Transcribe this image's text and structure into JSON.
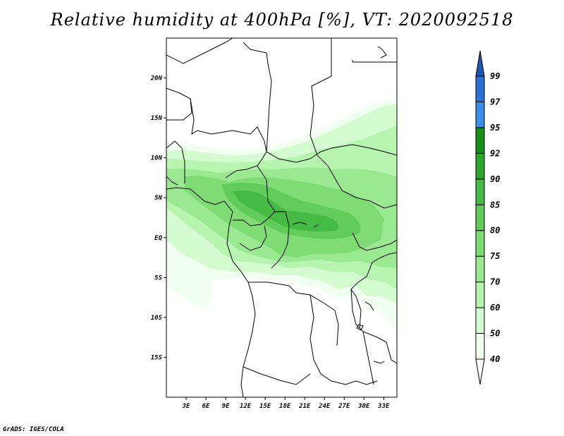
{
  "title": "Relative humidity at 400hPa [%], VT: 2020092518",
  "credit": "GrADS: IGES/COLA",
  "map": {
    "lon_range": [
      0,
      35
    ],
    "lat_range": [
      -20,
      25
    ],
    "lat_ticks": [
      {
        "value": 20,
        "label": "20N"
      },
      {
        "value": 15,
        "label": "15N"
      },
      {
        "value": 10,
        "label": "10N"
      },
      {
        "value": 5,
        "label": "5N"
      },
      {
        "value": 0,
        "label": "EQ"
      },
      {
        "value": -5,
        "label": "5S"
      },
      {
        "value": -10,
        "label": "10S"
      },
      {
        "value": -15,
        "label": "15S"
      }
    ],
    "lon_ticks": [
      {
        "value": 3,
        "label": "3E"
      },
      {
        "value": 6,
        "label": "6E"
      },
      {
        "value": 9,
        "label": "9E"
      },
      {
        "value": 12,
        "label": "12E"
      },
      {
        "value": 15,
        "label": "15E"
      },
      {
        "value": 18,
        "label": "18E"
      },
      {
        "value": 21,
        "label": "21E"
      },
      {
        "value": 24,
        "label": "24E"
      },
      {
        "value": 27,
        "label": "27E"
      },
      {
        "value": 30,
        "label": "30E"
      },
      {
        "value": 33,
        "label": "33E"
      }
    ]
  },
  "colorbar": {
    "levels": [
      "40",
      "50",
      "60",
      "70",
      "75",
      "80",
      "85",
      "90",
      "92",
      "95",
      "97",
      "99"
    ],
    "colors": [
      "#f0fff0",
      "#d4fbd0",
      "#b6f4b0",
      "#9ae990",
      "#7fdc74",
      "#61cc5a",
      "#45ba45",
      "#2ea62e",
      "#15901a",
      "#3c8fe8",
      "#2a72d9",
      "#1d55b8"
    ]
  }
}
